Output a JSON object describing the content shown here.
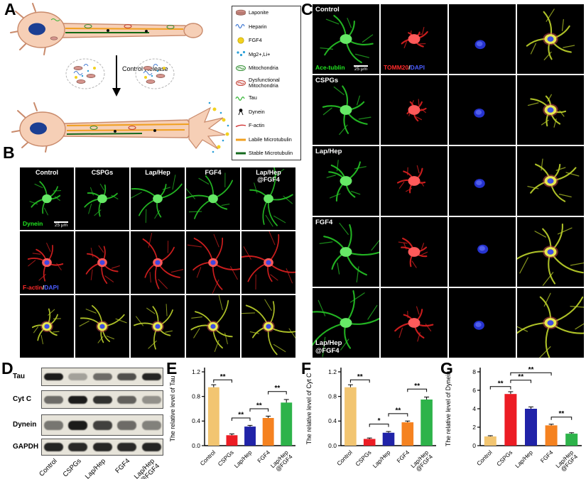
{
  "figure": {
    "panel_labels": {
      "A": "A",
      "B": "B",
      "C": "C",
      "D": "D",
      "E": "E",
      "F": "F",
      "G": "G"
    }
  },
  "panelA": {
    "arrow_label": "Control Release",
    "legend": [
      {
        "icon": "laponite-icon",
        "label": "Laponite"
      },
      {
        "icon": "heparin-icon",
        "label": "Heparin"
      },
      {
        "icon": "fgf4-icon",
        "label": "FGF4"
      },
      {
        "icon": "ions-icon",
        "label": "Mg2+,Li+"
      },
      {
        "icon": "mitochondria-icon",
        "label": "Mitochondria"
      },
      {
        "icon": "dysfunctional-mitochondria-icon",
        "label": "Dysfunctional Mitochondria"
      },
      {
        "icon": "tau-icon",
        "label": "Tau"
      },
      {
        "icon": "dynein-icon",
        "label": "Dynein"
      },
      {
        "icon": "f-actin-icon",
        "label": "F-actin"
      },
      {
        "icon": "labile-microtubulin-icon",
        "label": "Labile Microtubulin"
      },
      {
        "icon": "stable-microtubulin-icon",
        "label": "Stable Microtubulin"
      }
    ]
  },
  "panelB": {
    "col_labels": [
      "Control",
      "CSPGs",
      "Lap/Hep",
      "FGF4",
      "Lap/Hep\n@FGF4"
    ],
    "rows": [
      {
        "channel": "green",
        "label_parts": [
          {
            "text": "Dynein",
            "color": "#21e621"
          }
        ],
        "scale_bar": "25 μm"
      },
      {
        "channel": "red",
        "label_parts": [
          {
            "text": "F-actin",
            "color": "#ff2a2a"
          },
          {
            "text": "/",
            "color": "#ffffff"
          },
          {
            "text": "DAPI",
            "color": "#4a5cff"
          }
        ]
      },
      {
        "channel": "merge"
      }
    ]
  },
  "panelC": {
    "row_labels": [
      "Control",
      "CSPGs",
      "Lap/Hep",
      "FGF4",
      "Lap/Hep\n@FGF4"
    ],
    "channels": [
      "green",
      "red",
      "blue",
      "merge"
    ],
    "first_row_channel_labels": [
      {
        "parts": [
          {
            "text": "Ace-tublin",
            "color": "#21e621"
          }
        ],
        "scale_bar": "25 μm"
      },
      {
        "parts": [
          {
            "text": "TOMM20",
            "color": "#ff2a2a"
          },
          {
            "text": "/",
            "color": "#ffffff"
          },
          {
            "text": "DAPI",
            "color": "#4a5cff"
          }
        ]
      }
    ],
    "row_scales": [
      1,
      0.85,
      1.05,
      1.3,
      1.35
    ]
  },
  "panelD": {
    "proteins": [
      {
        "name": "Tau",
        "bands": [
          0.92,
          0.3,
          0.55,
          0.68,
          0.88
        ]
      },
      {
        "name": "Cyt C",
        "bands": [
          0.55,
          0.92,
          0.82,
          0.6,
          0.38
        ]
      },
      {
        "name": "Dynein",
        "bands": [
          0.5,
          0.92,
          0.75,
          0.55,
          0.45
        ]
      },
      {
        "name": "GAPDH",
        "bands": [
          0.88,
          0.86,
          0.87,
          0.86,
          0.88
        ]
      }
    ],
    "lane_labels": [
      "Control",
      "CSPGs",
      "Lap/Hep",
      "FGF4",
      "Lap/Hep\n@FGF4"
    ]
  },
  "chart_data": [
    {
      "id": "E",
      "type": "bar",
      "categories": [
        "Control",
        "CSPGs",
        "Lap/Hep",
        "FGF4",
        "Lap/Hep\n@FGF4"
      ],
      "values": [
        0.95,
        0.17,
        0.31,
        0.45,
        0.7
      ],
      "errors": [
        0.04,
        0.02,
        0.02,
        0.03,
        0.05
      ],
      "ylabel": "The relative level of Tau",
      "xlabel": "",
      "ylim": [
        0,
        1.2
      ],
      "yticks": [
        "0.0",
        "0.4",
        "0.8",
        "1.2"
      ],
      "colors": [
        "#f2c571",
        "#ec1c24",
        "#2023a8",
        "#f58220",
        "#2db34a"
      ],
      "significance": [
        {
          "from": 0,
          "to": 1,
          "label": "**",
          "y": 1.07
        },
        {
          "from": 1,
          "to": 2,
          "label": "**",
          "y": 0.45
        },
        {
          "from": 2,
          "to": 3,
          "label": "**",
          "y": 0.6
        },
        {
          "from": 3,
          "to": 4,
          "label": "**",
          "y": 0.88
        }
      ]
    },
    {
      "id": "F",
      "type": "bar",
      "categories": [
        "Control",
        "CSPGs",
        "Lap/Hep",
        "FGF4",
        "Lap/Hep\n@FGF4"
      ],
      "values": [
        0.95,
        0.11,
        0.21,
        0.38,
        0.75
      ],
      "errors": [
        0.04,
        0.015,
        0.02,
        0.02,
        0.04
      ],
      "ylabel": "The relative level of Cyt C",
      "xlabel": "",
      "ylim": [
        0,
        1.2
      ],
      "yticks": [
        "0.0",
        "0.4",
        "0.8",
        "1.2"
      ],
      "colors": [
        "#f2c571",
        "#ec1c24",
        "#2023a8",
        "#f58220",
        "#2db34a"
      ],
      "significance": [
        {
          "from": 0,
          "to": 1,
          "label": "**",
          "y": 1.07
        },
        {
          "from": 1,
          "to": 2,
          "label": "*",
          "y": 0.35
        },
        {
          "from": 2,
          "to": 3,
          "label": "**",
          "y": 0.52
        },
        {
          "from": 3,
          "to": 4,
          "label": "**",
          "y": 0.92
        }
      ]
    },
    {
      "id": "G",
      "type": "bar",
      "categories": [
        "Control",
        "CSPGs",
        "Lap/Hep",
        "FGF4",
        "Lap/Hep\n@FGF4"
      ],
      "values": [
        1.0,
        5.6,
        4.0,
        2.2,
        1.3
      ],
      "errors": [
        0.08,
        0.25,
        0.2,
        0.12,
        0.1
      ],
      "ylabel": "The relative level of Dynein",
      "xlabel": "",
      "ylim": [
        0,
        8
      ],
      "yticks": [
        "0",
        "2",
        "4",
        "6",
        "8"
      ],
      "colors": [
        "#f2c571",
        "#ec1c24",
        "#2023a8",
        "#f58220",
        "#2db34a"
      ],
      "significance": [
        {
          "from": 0,
          "to": 1,
          "label": "**",
          "y": 6.4
        },
        {
          "from": 1,
          "to": 2,
          "label": "**",
          "y": 7.1
        },
        {
          "from": 1,
          "to": 3,
          "label": "**",
          "y": 7.9
        },
        {
          "from": 3,
          "to": 4,
          "label": "**",
          "y": 3.1
        }
      ]
    }
  ]
}
